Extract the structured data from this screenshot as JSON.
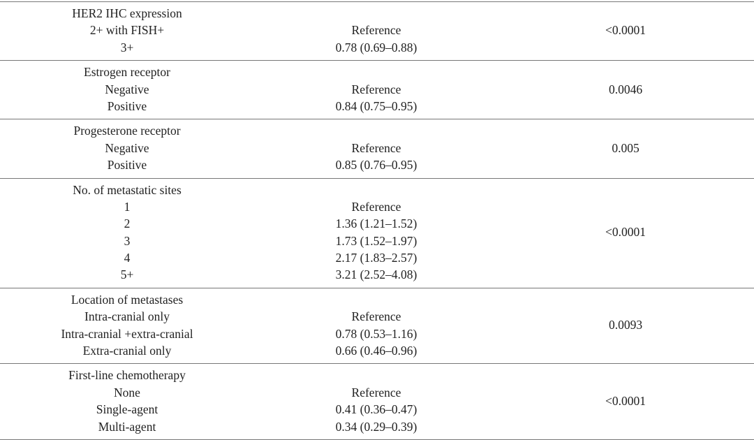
{
  "table": {
    "groups": [
      {
        "header": "HER2 IHC expression",
        "rows": [
          {
            "label": "2+ with FISH+",
            "hr": "Reference"
          },
          {
            "label": "3+",
            "hr": "0.78 (0.69–0.88)"
          }
        ],
        "p": "<0.0001"
      },
      {
        "header": "Estrogen receptor",
        "rows": [
          {
            "label": "Negative",
            "hr": "Reference"
          },
          {
            "label": "Positive",
            "hr": "0.84 (0.75–0.95)"
          }
        ],
        "p": "0.0046"
      },
      {
        "header": "Progesterone receptor",
        "rows": [
          {
            "label": "Negative",
            "hr": "Reference"
          },
          {
            "label": "Positive",
            "hr": "0.85 (0.76–0.95)"
          }
        ],
        "p": "0.005"
      },
      {
        "header": "No. of metastatic sites",
        "rows": [
          {
            "label": "1",
            "hr": "Reference"
          },
          {
            "label": "2",
            "hr": "1.36 (1.21–1.52)"
          },
          {
            "label": "3",
            "hr": "1.73 (1.52–1.97)"
          },
          {
            "label": "4",
            "hr": "2.17 (1.83–2.57)"
          },
          {
            "label": "5+",
            "hr": "3.21 (2.52–4.08)"
          }
        ],
        "p": "<0.0001"
      },
      {
        "header": "Location of metastases",
        "rows": [
          {
            "label": "Intra-cranial only",
            "hr": "Reference"
          },
          {
            "label": "Intra-cranial +extra-cranial",
            "hr": "0.78 (0.53–1.16)"
          },
          {
            "label": "Extra-cranial only",
            "hr": "0.66 (0.46–0.96)"
          }
        ],
        "p": "0.0093"
      },
      {
        "header": "First-line chemotherapy",
        "rows": [
          {
            "label": "None",
            "hr": "Reference"
          },
          {
            "label": "Single-agent",
            "hr": "0.41 (0.36–0.47)"
          },
          {
            "label": "Multi-agent",
            "hr": "0.34 (0.29–0.39)"
          }
        ],
        "p": "<0.0001"
      }
    ]
  }
}
